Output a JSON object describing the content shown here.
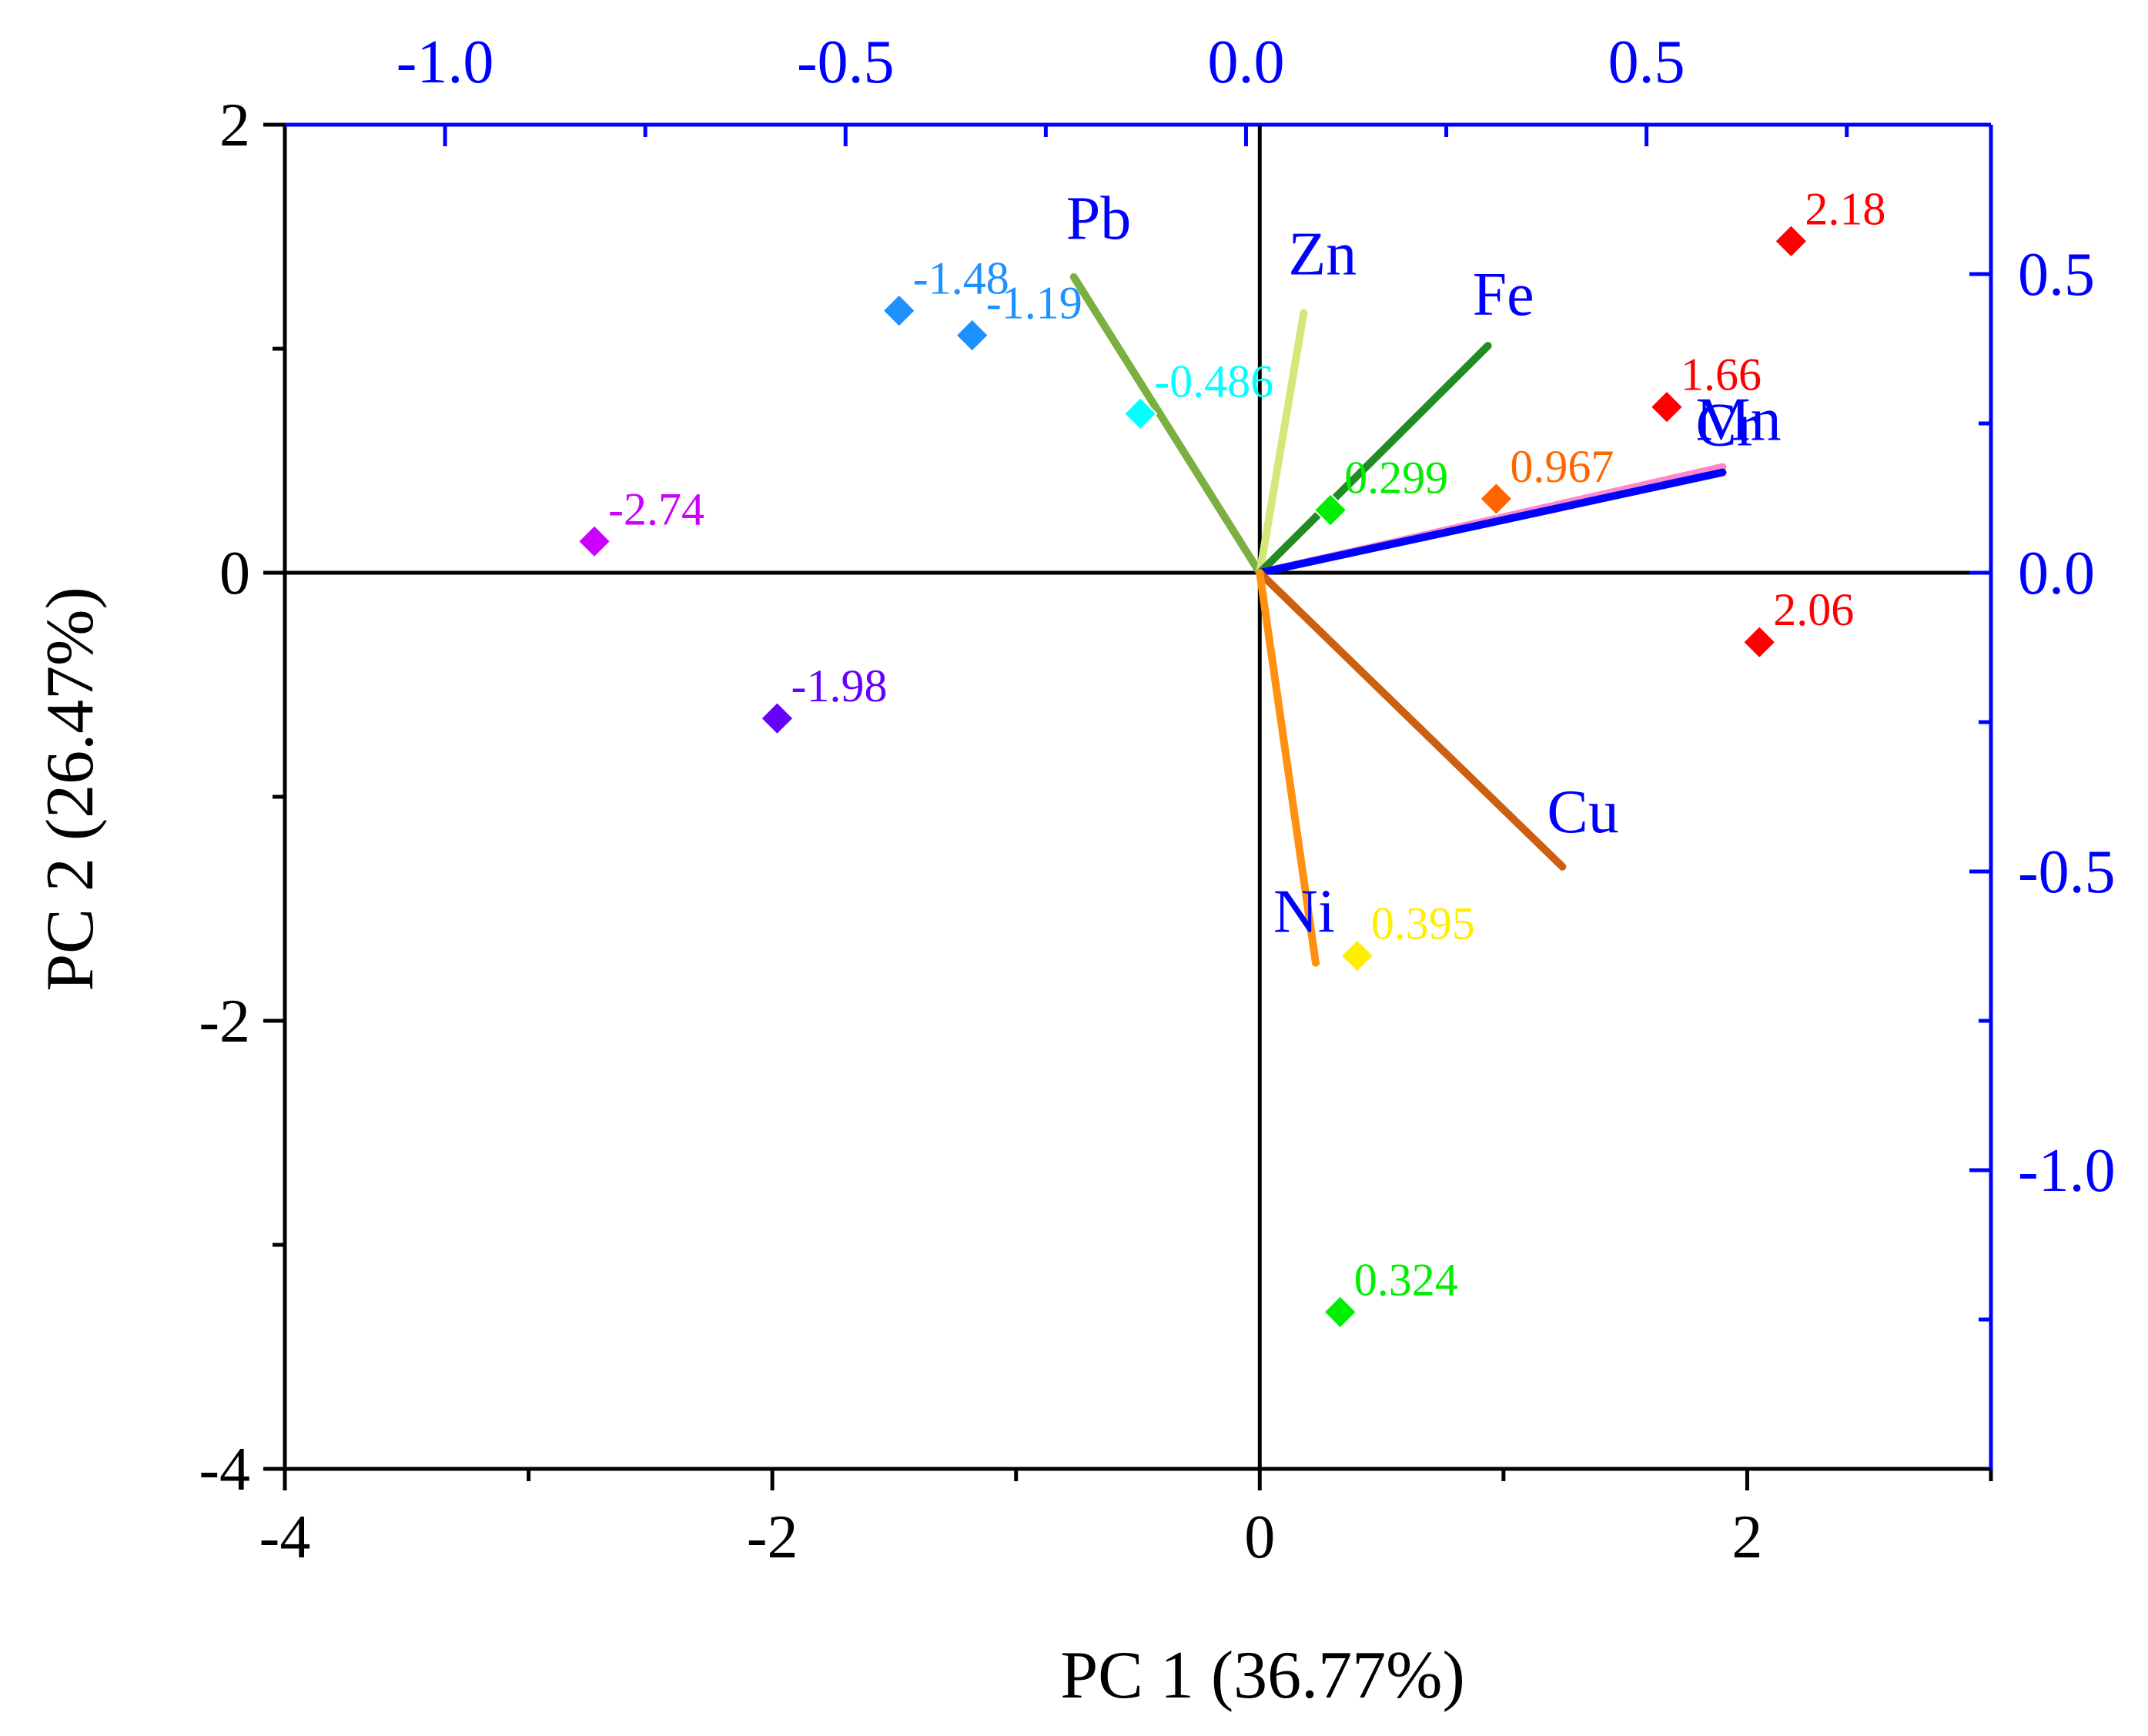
{
  "chart_data": {
    "type": "scatter",
    "subtype": "pca-biplot",
    "xlabel": "PC 1 (36.77%)",
    "ylabel": "PC 2 (26.47%)",
    "xlim": [
      -4,
      3
    ],
    "ylim": [
      -4,
      2
    ],
    "x_ticks": [
      -4,
      -2,
      0,
      2
    ],
    "x_tick_labels": [
      "-4",
      "-2",
      "0",
      "2"
    ],
    "y_ticks": [
      2,
      0,
      -2,
      -4
    ],
    "y_tick_labels": [
      "2",
      "0",
      "-2",
      "-4"
    ],
    "top_axis": {
      "range": [
        -1.2,
        0.93
      ],
      "ticks": [
        -1.0,
        -0.5,
        0.0,
        0.5
      ],
      "tick_labels": [
        "-1.0",
        "-0.5",
        "0.0",
        "0.5"
      ],
      "color": "#0000ff"
    },
    "right_axis": {
      "range": [
        -1.5,
        0.75
      ],
      "ticks": [
        0.5,
        0.0,
        -0.5,
        -1.0
      ],
      "tick_labels": [
        "0.5",
        "0.0",
        "-0.5",
        "-1.0"
      ],
      "color": "#0000ff"
    },
    "scores": [
      {
        "label": "2.18",
        "x": 2.18,
        "y": 1.48,
        "color": "#ff0000"
      },
      {
        "label": "1.66",
        "x": 1.67,
        "y": 0.74,
        "color": "#ff0000"
      },
      {
        "label": "2.06",
        "x": 2.05,
        "y": -0.31,
        "color": "#ff0000"
      },
      {
        "label": "0.967",
        "x": 0.97,
        "y": 0.33,
        "color": "#ff6600"
      },
      {
        "label": "0.299",
        "x": 0.29,
        "y": 0.28,
        "color": "#00ee00"
      },
      {
        "label": "0.395",
        "x": 0.4,
        "y": -1.71,
        "color": "#ffee00"
      },
      {
        "label": "0.324",
        "x": 0.33,
        "y": -3.3,
        "color": "#00ee00"
      },
      {
        "label": "-0.486",
        "x": -0.49,
        "y": 0.71,
        "color": "#00ffff"
      },
      {
        "label": "-1.19",
        "x": -1.18,
        "y": 1.06,
        "color": "#1e90ff"
      },
      {
        "label": "-1.48",
        "x": -1.48,
        "y": 1.17,
        "color": "#1e90ff"
      },
      {
        "label": "-1.98",
        "x": -1.98,
        "y": -0.65,
        "color": "#6600ff"
      },
      {
        "label": "-2.74",
        "x": -2.73,
        "y": 0.14,
        "color": "#cc00ff"
      }
    ],
    "loadings": [
      {
        "label": "Pb",
        "x": -0.215,
        "y": 0.495,
        "color": "#7bb040"
      },
      {
        "label": "Zn",
        "x": 0.072,
        "y": 0.435,
        "color": "#d4e87a"
      },
      {
        "label": "Fe",
        "x": 0.302,
        "y": 0.38,
        "color": "#228b22"
      },
      {
        "label": "Mn",
        "x": 0.595,
        "y": 0.177,
        "color": "#ff88cc"
      },
      {
        "label": "Cr",
        "x": 0.595,
        "y": 0.168,
        "color": "#0000ff"
      },
      {
        "label": "Cu",
        "x": 0.395,
        "y": -0.492,
        "color": "#cc6010"
      },
      {
        "label": "Ni",
        "x": 0.087,
        "y": -0.653,
        "color": "#ff9010"
      }
    ],
    "grid": false
  }
}
